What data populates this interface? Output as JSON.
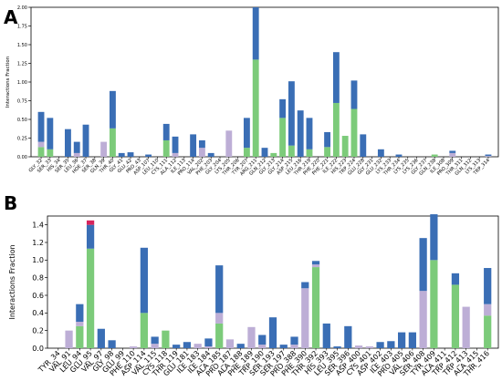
{
  "colors": {
    "hbond": "#3a6eb5",
    "hydrophobic": "#7ccb7a",
    "water": "#bdaed6",
    "ionic": "#d6245c"
  },
  "chart_data": [
    {
      "panel": "A",
      "type": "bar",
      "stacked": true,
      "ylabel": "Interactions Fraction",
      "ylim": [
        0,
        2.0
      ],
      "yticks": [
        "0.00",
        "0.25",
        "0.50",
        "0.75",
        "1.00",
        "1.25",
        "1.50",
        "1.75",
        "2.00"
      ],
      "categories": [
        "GLY_32",
        "SER_33",
        "HIS_34",
        "SER_35",
        "LEU_36",
        "HOE_37",
        "SER_38",
        "GLN_39",
        "THR_40",
        "GLY_41",
        "GLU_42",
        "PRO_43",
        "ASP_107",
        "LEU_110",
        "CYS_111",
        "ALA_112",
        "ILE_113",
        "PRO_114",
        "VAL_202",
        "PHE_203",
        "GLY_204",
        "LYS_205",
        "THR_206",
        "TYR_207",
        "ARG_211",
        "GLN_212",
        "GLY_213",
        "GLY_214",
        "ASP_215",
        "LEU_216",
        "THR_219",
        "PHE_220",
        "PHE_221",
        "ILE_222",
        "HIS_223",
        "TRP_224",
        "GLU_228",
        "GLY_231",
        "GLU_232",
        "LYS_233",
        "THR_234",
        "LYS_235",
        "LYS_236",
        "GLY_237",
        "GLN_238",
        "ILE_308",
        "PRO_309",
        "THR_311",
        "GLN_312",
        "LYS_313",
        "TRP_314"
      ],
      "series": [
        {
          "values": [
            0.13,
            0.1,
            0.0,
            0.0,
            0.0,
            0.0,
            0.0,
            0.0,
            0.38,
            0.0,
            0.0,
            0.0,
            0.0,
            0.0,
            0.22,
            0.0,
            0.0,
            0.0,
            0.0,
            0.0,
            0.0,
            0.0,
            0.0,
            0.12,
            1.3,
            0.0,
            0.05,
            0.52,
            0.15,
            0.0,
            0.1,
            0.0,
            0.13,
            0.72,
            0.28,
            0.64,
            0.0,
            0.0,
            0.0,
            0.0,
            0.0,
            0.0,
            0.0,
            0.0,
            0.03,
            0.0,
            0.0,
            0.0,
            0.0,
            0.0,
            0.0
          ]
        },
        {
          "values": [
            0.07,
            0.0,
            0.0,
            0.0,
            0.05,
            0.0,
            0.0,
            0.2,
            0.0,
            0.0,
            0.0,
            0.0,
            0.0,
            0.0,
            0.0,
            0.05,
            0.0,
            0.0,
            0.12,
            0.0,
            0.0,
            0.35,
            0.0,
            0.0,
            0.0,
            0.0,
            0.0,
            0.0,
            0.0,
            0.0,
            0.0,
            0.0,
            0.0,
            0.0,
            0.0,
            0.0,
            0.0,
            0.0,
            0.0,
            0.0,
            0.0,
            0.0,
            0.0,
            0.0,
            0.0,
            0.0,
            0.05,
            0.0,
            0.0,
            0.0,
            0.01
          ]
        },
        {
          "values": [
            0.4,
            0.42,
            0.0,
            0.37,
            0.15,
            0.43,
            0.0,
            0.0,
            0.5,
            0.05,
            0.06,
            0.0,
            0.03,
            0.0,
            0.22,
            0.22,
            0.0,
            0.3,
            0.1,
            0.05,
            0.0,
            0.0,
            0.0,
            0.4,
            0.7,
            0.12,
            0.0,
            0.25,
            0.86,
            0.62,
            0.42,
            0.0,
            0.2,
            0.68,
            0.0,
            0.38,
            0.3,
            0.0,
            0.1,
            0.0,
            0.03,
            0.0,
            0.0,
            0.0,
            0.0,
            0.0,
            0.03,
            0.0,
            0.0,
            0.0,
            0.02
          ]
        }
      ]
    },
    {
      "panel": "B",
      "type": "bar",
      "stacked": true,
      "ylabel": "Interactions Fraction",
      "ylim": [
        0,
        1.5
      ],
      "yticks": [
        "0.0",
        "0.2",
        "0.4",
        "0.6",
        "0.8",
        "1.0",
        "1.2",
        "1.4"
      ],
      "categories": [
        "TYR_34",
        "VAL_91",
        "LEU_94",
        "GLU_95",
        "VAL_97",
        "GLY_98",
        "GLU_99",
        "PHE_110",
        "ASP_114",
        "VAL_115",
        "CYS_118",
        "THR_119",
        "GLU_181",
        "ILE_183",
        "ILE_184",
        "ALA_185",
        "PRO_187",
        "ALA_188",
        "PHE_189",
        "TRP_190",
        "SER_193",
        "SER_197",
        "PRO_388",
        "PHE_390",
        "THR_392",
        "HIS_393",
        "LEU_395",
        "SER_396",
        "ASP_400",
        "CYS_401",
        "ASP_402",
        "ILE_403",
        "PRO_405",
        "VAL_406",
        "SER_408",
        "TYR_409",
        "ALA_411",
        "TRP_412",
        "TRP_413",
        "ALA_415",
        "THR_416"
      ],
      "series": [
        {
          "values": [
            0.0,
            0.0,
            0.25,
            1.13,
            0.0,
            0.0,
            0.0,
            0.0,
            0.4,
            0.0,
            0.2,
            0.0,
            0.0,
            0.0,
            0.0,
            0.28,
            0.0,
            0.0,
            0.0,
            0.0,
            0.0,
            0.0,
            0.0,
            0.0,
            0.92,
            0.0,
            0.0,
            0.0,
            0.0,
            0.0,
            0.0,
            0.0,
            0.0,
            0.0,
            0.0,
            1.0,
            0.0,
            0.72,
            0.0,
            0.0,
            0.37
          ]
        },
        {
          "values": [
            0.0,
            0.2,
            0.05,
            0.0,
            0.0,
            0.0,
            0.0,
            0.02,
            0.0,
            0.05,
            0.0,
            0.0,
            0.0,
            0.05,
            0.02,
            0.12,
            0.1,
            0.0,
            0.24,
            0.04,
            0.0,
            0.0,
            0.04,
            0.68,
            0.03,
            0.0,
            0.0,
            0.0,
            0.03,
            0.02,
            0.0,
            0.0,
            0.0,
            0.0,
            0.65,
            0.0,
            0.0,
            0.0,
            0.47,
            0.0,
            0.13
          ]
        },
        {
          "values": [
            0.0,
            0.0,
            0.2,
            0.27,
            0.22,
            0.09,
            0.0,
            0.0,
            0.74,
            0.08,
            0.0,
            0.04,
            0.07,
            0.0,
            0.09,
            0.54,
            0.0,
            0.05,
            0.0,
            0.11,
            0.35,
            0.04,
            0.09,
            0.07,
            0.04,
            0.28,
            0.02,
            0.25,
            0.0,
            0.0,
            0.07,
            0.08,
            0.18,
            0.18,
            0.6,
            0.52,
            0.0,
            0.13,
            0.0,
            0.0,
            0.41
          ]
        },
        {
          "values": [
            0.0,
            0.0,
            0.0,
            0.05,
            0.0,
            0.0,
            0.0,
            0.0,
            0.0,
            0.0,
            0.0,
            0.0,
            0.0,
            0.0,
            0.0,
            0.0,
            0.0,
            0.0,
            0.0,
            0.0,
            0.0,
            0.0,
            0.0,
            0.0,
            0.0,
            0.0,
            0.0,
            0.0,
            0.0,
            0.0,
            0.0,
            0.0,
            0.0,
            0.0,
            0.0,
            0.0,
            0.0,
            0.0,
            0.0,
            0.0,
            0.0
          ]
        }
      ]
    }
  ],
  "panel_labels": [
    "A",
    "B"
  ]
}
